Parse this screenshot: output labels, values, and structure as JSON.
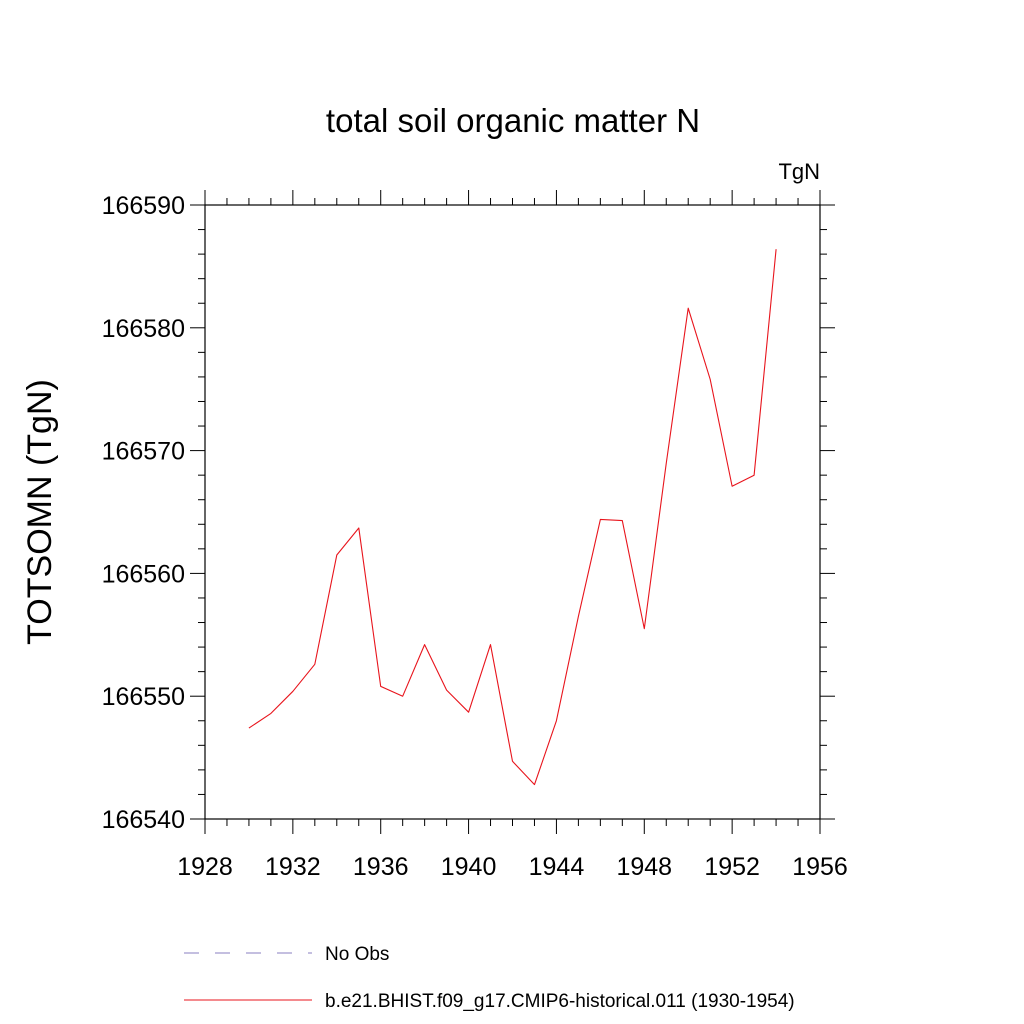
{
  "chart_data": {
    "type": "line",
    "title": "total soil organic matter N",
    "units_label": "TgN",
    "ylabel": "TOTSOMN  (TgN)",
    "xlabel": "",
    "xlim": [
      1928,
      1956
    ],
    "ylim": [
      166540,
      166590
    ],
    "x_ticks": [
      1928,
      1932,
      1936,
      1940,
      1944,
      1948,
      1952,
      1956
    ],
    "y_ticks": [
      166540,
      166550,
      166560,
      166570,
      166580,
      166590
    ],
    "x_minor_step": 1,
    "y_minor_step": 2,
    "grid": false,
    "legend_position": "bottom",
    "legend": [
      {
        "label": "No Obs",
        "style": "dashed",
        "color": "#8a7fc0"
      },
      {
        "label": "b.e21.BHIST.f09_g17.CMIP6-historical.011 (1930-1954)",
        "style": "solid",
        "color": "#e8141c"
      }
    ],
    "series": [
      {
        "name": "b.e21.BHIST.f09_g17.CMIP6-historical.011 (1930-1954)",
        "color": "#e8141c",
        "x": [
          1930,
          1931,
          1932,
          1933,
          1934,
          1935,
          1936,
          1937,
          1938,
          1939,
          1940,
          1941,
          1942,
          1943,
          1944,
          1945,
          1946,
          1947,
          1948,
          1949,
          1950,
          1951,
          1952,
          1953,
          1954
        ],
        "values": [
          166547.4,
          166548.6,
          166550.4,
          166552.6,
          166561.5,
          166563.7,
          166550.8,
          166550.0,
          166554.2,
          166550.5,
          166548.7,
          166554.2,
          166544.7,
          166542.8,
          166548.0,
          166556.5,
          166564.4,
          166564.3,
          166555.5,
          166569.0,
          166581.6,
          166575.8,
          166567.1,
          166568.0,
          166586.4
        ]
      }
    ]
  }
}
